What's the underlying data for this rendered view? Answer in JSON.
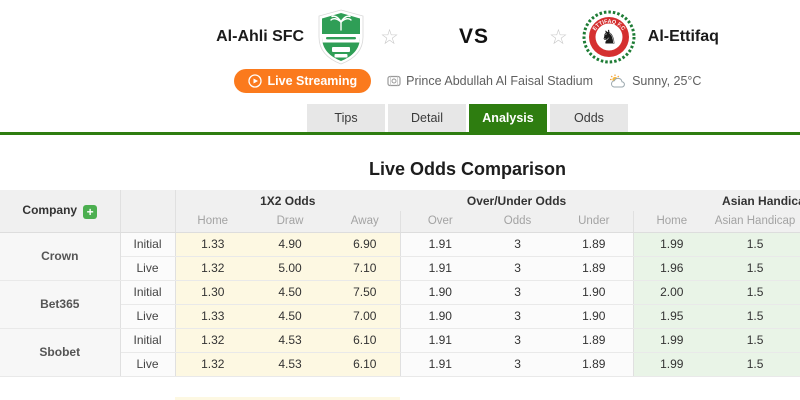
{
  "match": {
    "home_name": "Al-Ahli SFC",
    "away_name": "Al-Ettifaq",
    "vs_label": "VS",
    "live_streaming_label": "Live Streaming",
    "stadium": "Prince Abdullah Al Faisal Stadium",
    "weather": "Sunny, 25°C"
  },
  "tabs": [
    {
      "label": "Tips",
      "active": false
    },
    {
      "label": "Detail",
      "active": false
    },
    {
      "label": "Analysis",
      "active": true
    },
    {
      "label": "Odds",
      "active": false
    }
  ],
  "section_title": "Live Odds Comparison",
  "odds_table": {
    "company_header": "Company",
    "add_button_label": "+",
    "groups": [
      {
        "label": "1X2 Odds",
        "key": "x12",
        "columns": [
          "Home",
          "Draw",
          "Away"
        ],
        "filler": false
      },
      {
        "label": "Over/Under Odds",
        "key": "ou",
        "columns": [
          "Over",
          "Odds",
          "Under"
        ],
        "filler": false
      },
      {
        "label": "Asian Handicap Odds",
        "key": "ah",
        "columns": [
          "Home",
          "Asian Handicap"
        ],
        "filler": true
      }
    ],
    "companies": [
      {
        "name": "Crown",
        "rows": [
          {
            "label": "Initial",
            "x12": [
              "1.33",
              "4.90",
              "6.90"
            ],
            "ou": [
              "1.91",
              "3",
              "1.89"
            ],
            "ah": [
              "1.99",
              "1.5"
            ]
          },
          {
            "label": "Live",
            "x12": [
              "1.32",
              "5.00",
              "7.10"
            ],
            "ou": [
              "1.91",
              "3",
              "1.89"
            ],
            "ah": [
              "1.96",
              "1.5"
            ]
          }
        ]
      },
      {
        "name": "Bet365",
        "rows": [
          {
            "label": "Initial",
            "x12": [
              "1.30",
              "4.50",
              "7.50"
            ],
            "ou": [
              "1.90",
              "3",
              "1.90"
            ],
            "ah": [
              "2.00",
              "1.5"
            ]
          },
          {
            "label": "Live",
            "x12": [
              "1.33",
              "4.50",
              "7.00"
            ],
            "ou": [
              "1.90",
              "3",
              "1.90"
            ],
            "ah": [
              "1.95",
              "1.5"
            ]
          }
        ]
      },
      {
        "name": "Sbobet",
        "rows": [
          {
            "label": "Initial",
            "x12": [
              "1.32",
              "4.53",
              "6.10"
            ],
            "ou": [
              "1.91",
              "3",
              "1.89"
            ],
            "ah": [
              "1.99",
              "1.5"
            ]
          },
          {
            "label": "Live",
            "x12": [
              "1.32",
              "4.53",
              "6.10"
            ],
            "ou": [
              "1.91",
              "3",
              "1.89"
            ],
            "ah": [
              "1.99",
              "1.5"
            ]
          }
        ]
      }
    ]
  },
  "colors": {
    "accent_green": "#2e7d10",
    "streaming_orange": "#fb7a1d",
    "add_button_green": "#4caf50",
    "x12_cell_bg": "#fdf8e2",
    "asian_handicap_cell_bg": "#e9f4e7",
    "table_header_bg": "#f0f0f0"
  }
}
